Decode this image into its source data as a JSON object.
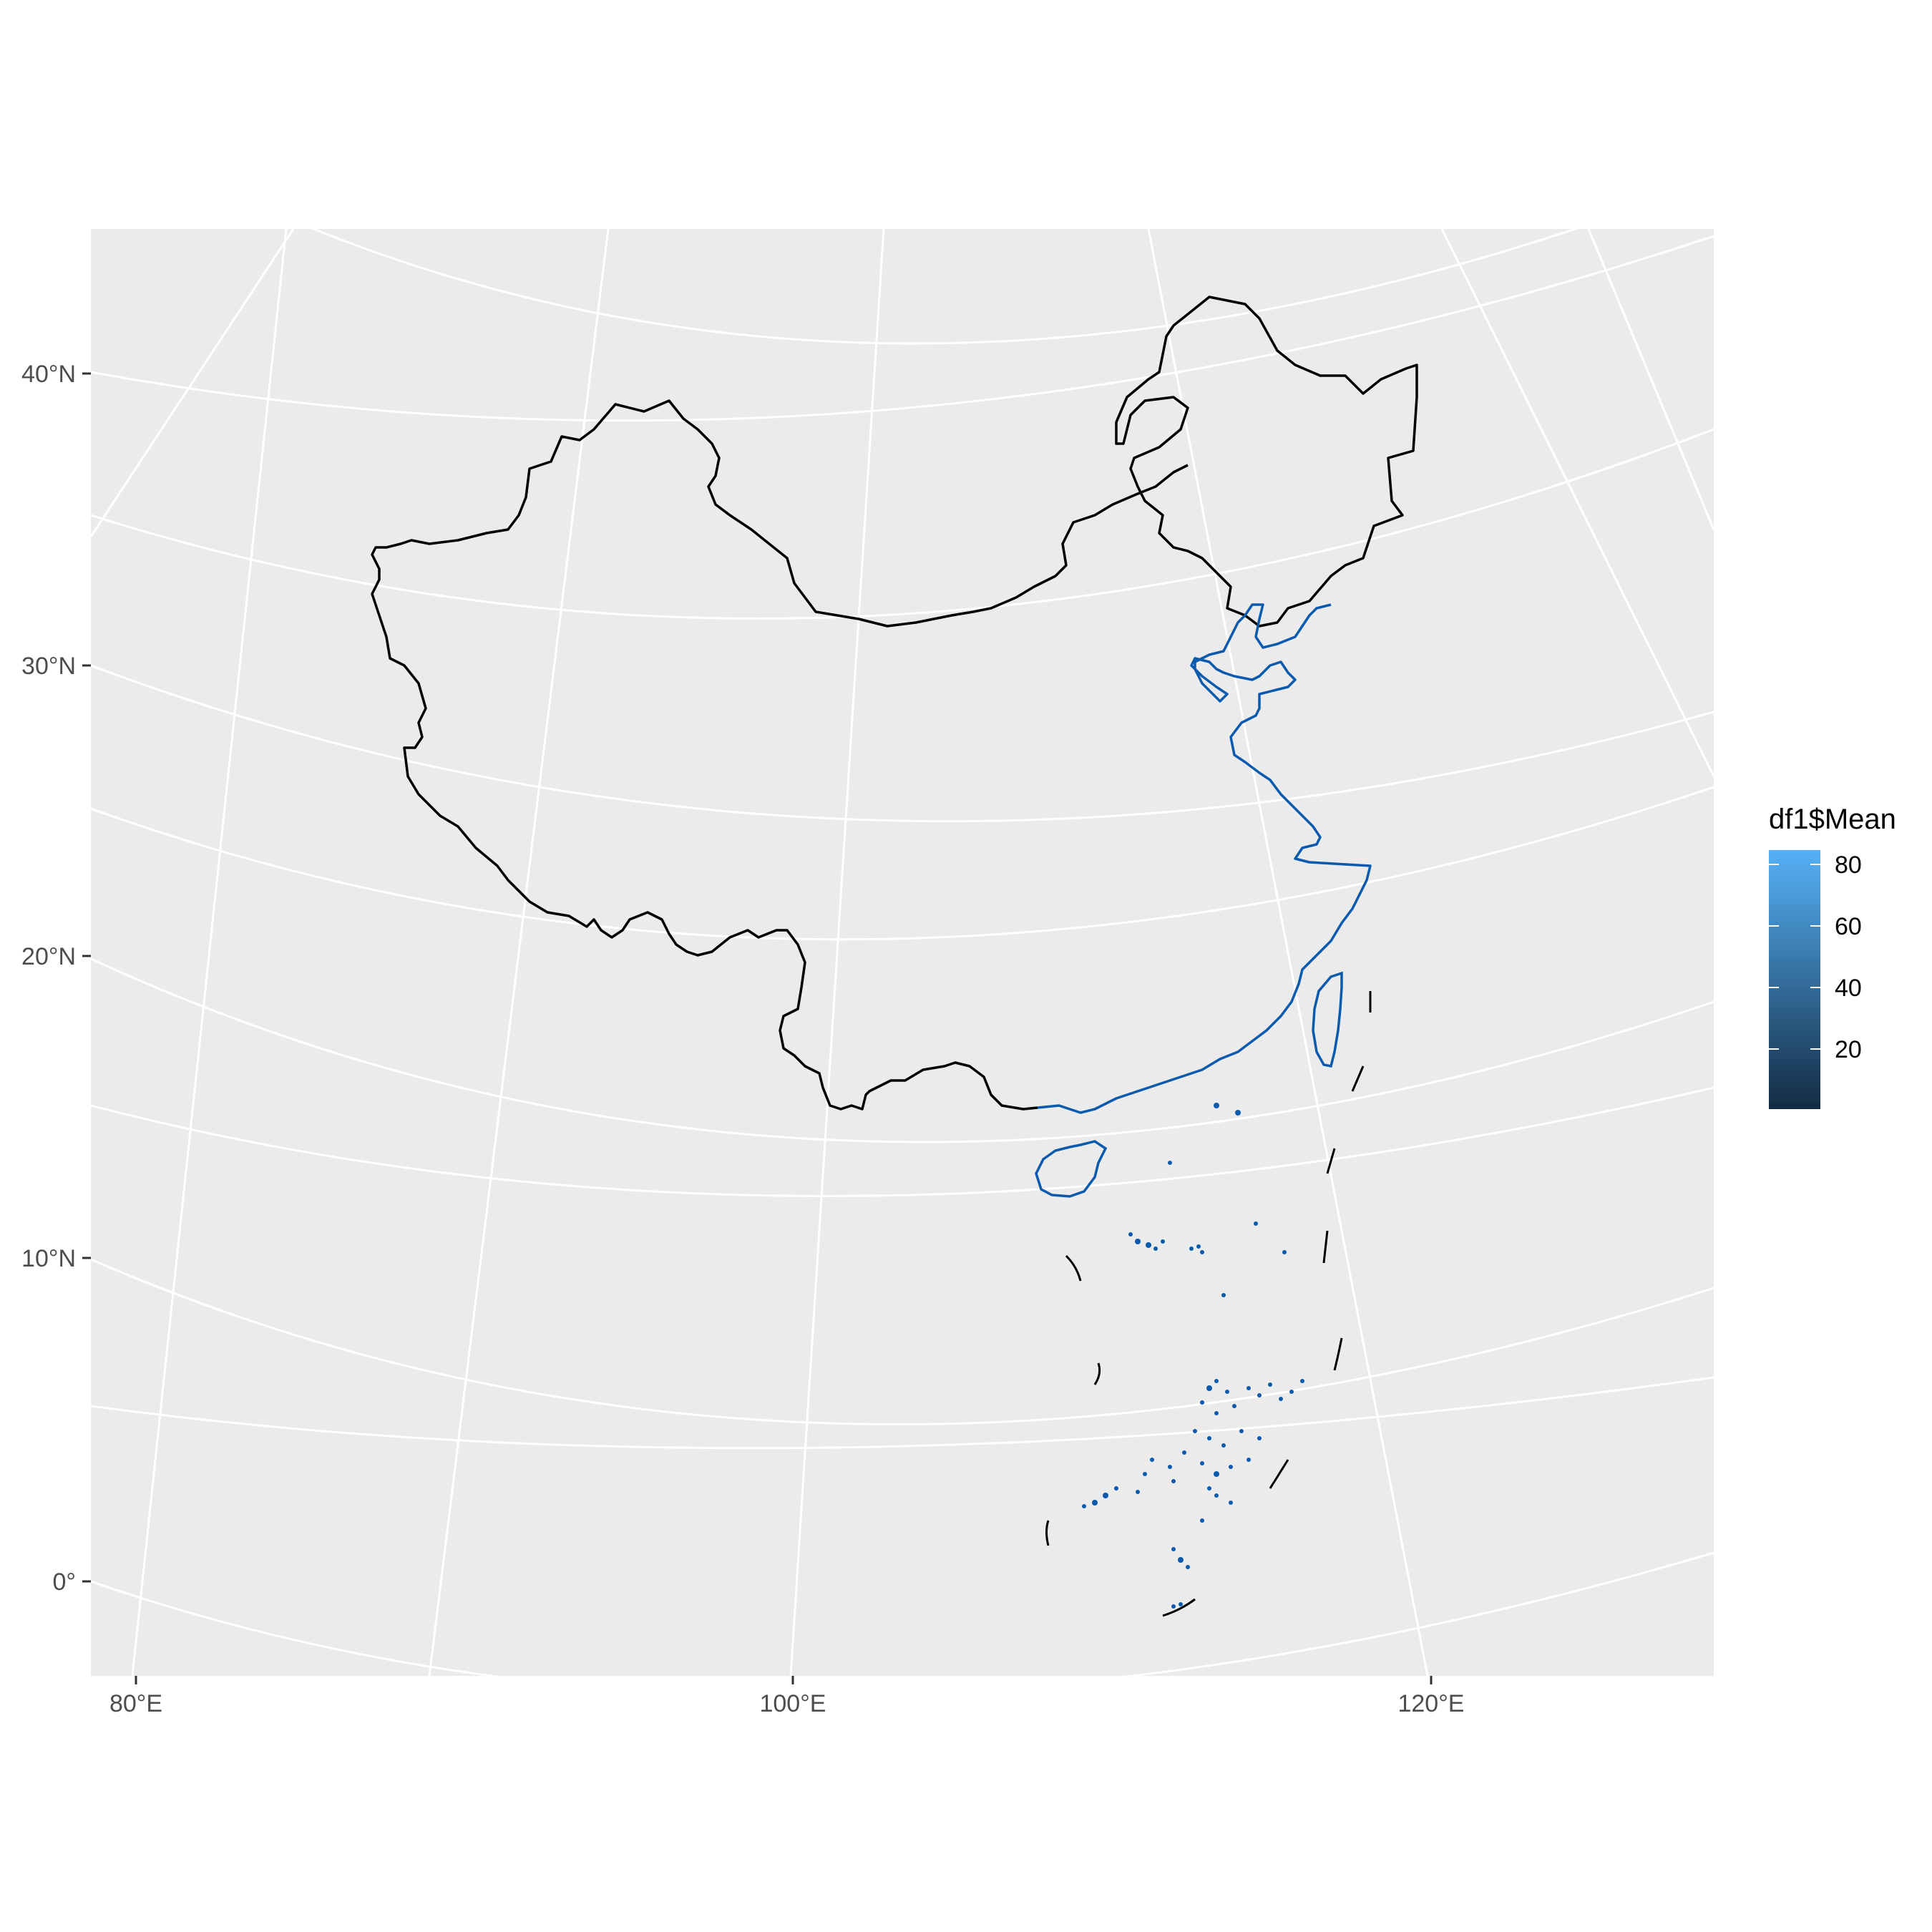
{
  "map": {
    "panel_background": "#EBEBEB",
    "graticule_color": "#FFFFFF",
    "border_color": "#000000",
    "coast_color": "#0B5AAE",
    "latitude_labels": [
      "40°N",
      "30°N",
      "20°N",
      "10°N",
      "0°"
    ],
    "longitude_labels": [
      "80°E",
      "100°E",
      "120°E"
    ]
  },
  "legend": {
    "title": "df1$Mean",
    "ticks": [
      "80",
      "60",
      "40",
      "20"
    ],
    "gradient_low": "#132B43",
    "gradient_high": "#56B1F7"
  }
}
